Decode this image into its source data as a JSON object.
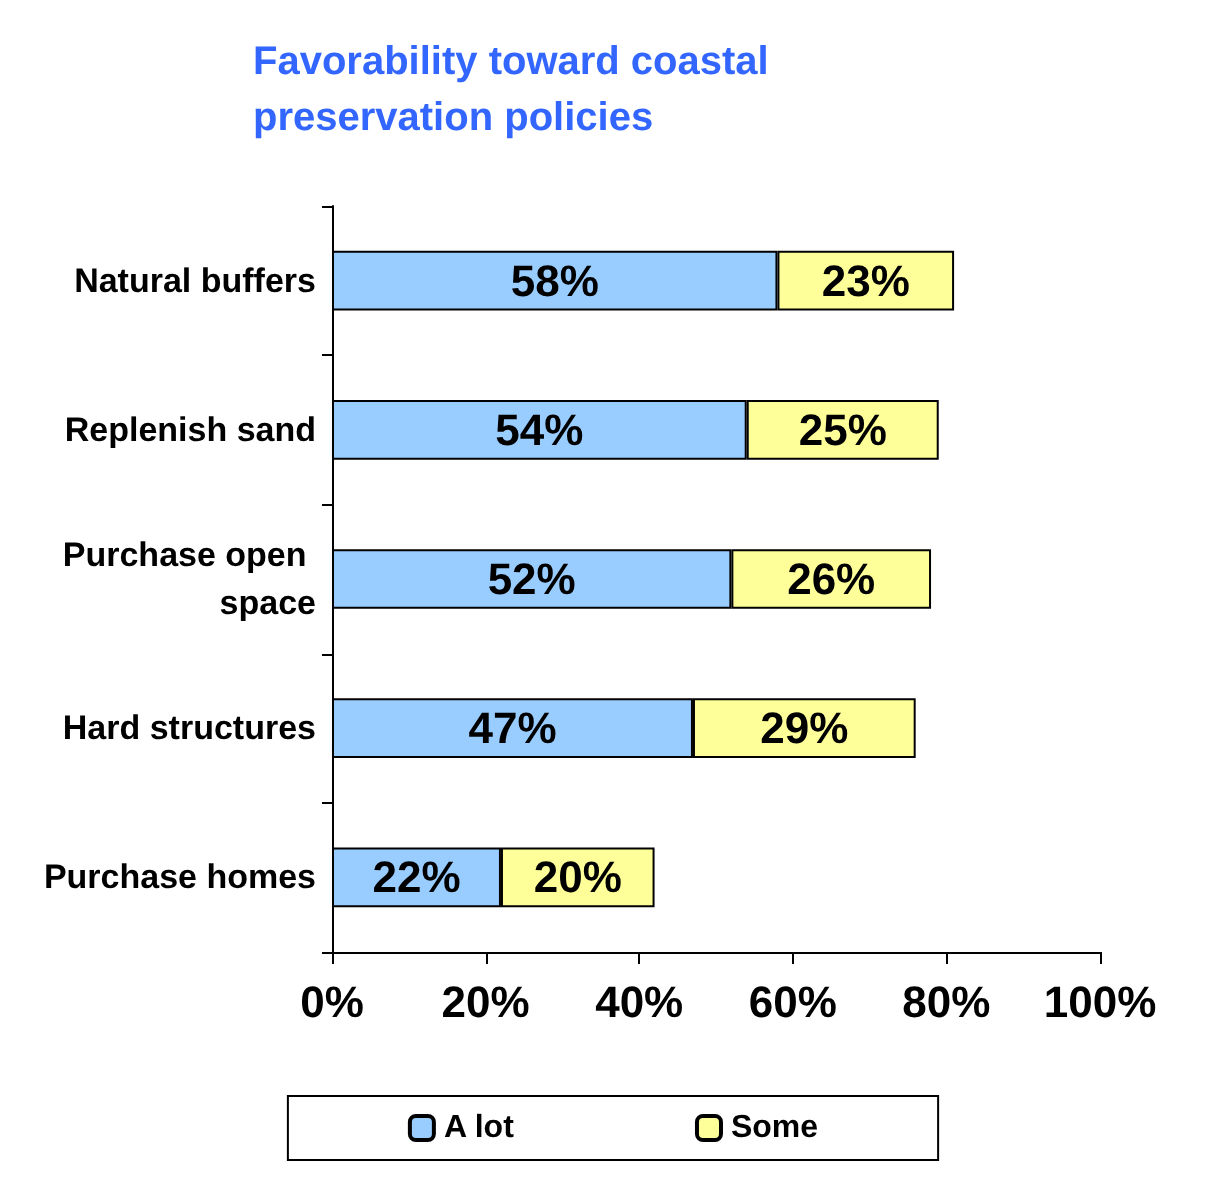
{
  "chart_data": {
    "type": "bar",
    "orientation": "horizontal",
    "stacked": true,
    "title": "Favorability toward coastal preservation policies",
    "categories": [
      "Natural buffers",
      "Replenish sand",
      "Purchase open space",
      "Hard structures",
      "Purchase homes"
    ],
    "series": [
      {
        "name": "A lot",
        "color": "#99ccff",
        "values": [
          58,
          54,
          52,
          47,
          22
        ],
        "value_labels": [
          "58%",
          "54%",
          "52%",
          "47%",
          "22%"
        ]
      },
      {
        "name": "Some",
        "color": "#ffff99",
        "values": [
          23,
          25,
          26,
          29,
          20
        ],
        "value_labels": [
          "23%",
          "25%",
          "26%",
          "29%",
          "20%"
        ]
      }
    ],
    "xlim": [
      0,
      100
    ],
    "xticks": [
      {
        "value": 0,
        "label": "0%"
      },
      {
        "value": 20,
        "label": "20%"
      },
      {
        "value": 40,
        "label": "40%"
      },
      {
        "value": 60,
        "label": "60%"
      },
      {
        "value": 80,
        "label": "80%"
      },
      {
        "value": 100,
        "label": "100%"
      }
    ],
    "legend": "bottom",
    "grid": false
  }
}
